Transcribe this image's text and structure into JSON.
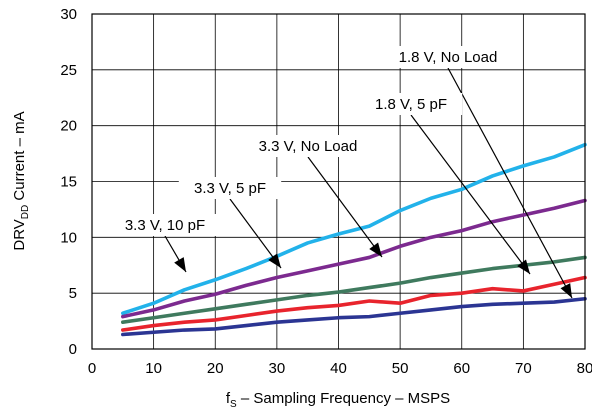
{
  "chart_data": {
    "type": "line",
    "title": "",
    "xlabel": "f",
    "xlabel_sub": "S",
    "xlabel_rest": " – Sampling Frequency – MSPS",
    "ylabel": "DRV",
    "ylabel_sub": "DD",
    "ylabel_rest": " Current – mA",
    "xlim": [
      0,
      80
    ],
    "ylim": [
      0,
      30
    ],
    "x_ticks": [
      0,
      10,
      20,
      30,
      40,
      50,
      60,
      70,
      80
    ],
    "y_ticks": [
      0,
      5,
      10,
      15,
      20,
      25,
      30
    ],
    "grid": true,
    "x": [
      5,
      10,
      15,
      20,
      25,
      30,
      35,
      40,
      45,
      50,
      55,
      60,
      65,
      70,
      75,
      80
    ],
    "series": [
      {
        "name": "3.3 V, 10 pF",
        "color": "#22b2ea",
        "values": [
          3.2,
          4.1,
          5.3,
          6.2,
          7.2,
          8.3,
          9.5,
          10.3,
          11.0,
          12.4,
          13.5,
          14.3,
          15.5,
          16.4,
          17.2,
          18.3
        ]
      },
      {
        "name": "3.3 V, 5 pF",
        "color": "#7c2a8f",
        "values": [
          2.9,
          3.5,
          4.3,
          4.9,
          5.7,
          6.4,
          7.0,
          7.6,
          8.2,
          9.2,
          10.0,
          10.6,
          11.4,
          12.0,
          12.6,
          13.3
        ]
      },
      {
        "name": "3.3 V, No Load",
        "color": "#3f7a5e",
        "values": [
          2.4,
          2.8,
          3.2,
          3.6,
          4.0,
          4.4,
          4.8,
          5.1,
          5.5,
          5.9,
          6.4,
          6.8,
          7.2,
          7.5,
          7.8,
          8.2
        ]
      },
      {
        "name": "1.8 V, 5 pF",
        "color": "#e8242d",
        "values": [
          1.7,
          2.1,
          2.4,
          2.6,
          3.0,
          3.4,
          3.7,
          3.9,
          4.3,
          4.1,
          4.8,
          5.0,
          5.4,
          5.2,
          5.8,
          6.4
        ]
      },
      {
        "name": "1.8 V, No Load",
        "color": "#2b3593",
        "values": [
          1.3,
          1.5,
          1.7,
          1.8,
          2.1,
          2.4,
          2.6,
          2.8,
          2.9,
          3.2,
          3.5,
          3.8,
          4.0,
          4.1,
          4.2,
          4.5
        ]
      }
    ],
    "annotations": [
      {
        "text": "1.8 V, No Load",
        "series": 4
      },
      {
        "text": "1.8 V, 5 pF",
        "series": 3
      },
      {
        "text": "3.3 V, No Load",
        "series": 2
      },
      {
        "text": "3.3 V, 5 pF",
        "series": 1
      },
      {
        "text": "3.3 V, 10 pF",
        "series": 0
      }
    ]
  }
}
